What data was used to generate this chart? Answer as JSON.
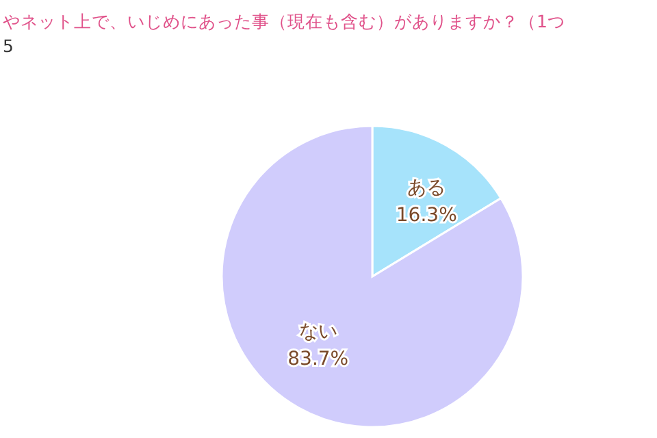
{
  "chart_data": {
    "type": "pie",
    "title": "やネット上で、いじめにあった事（現在も含む）がありますか？（1つ",
    "subtitle": "5",
    "categories": [
      "ある",
      "ない"
    ],
    "values": [
      16.3,
      83.7
    ],
    "colors": [
      "#a6e3fb",
      "#d0ccfc"
    ],
    "value_labels": [
      "16.3%",
      "83.7%"
    ]
  }
}
